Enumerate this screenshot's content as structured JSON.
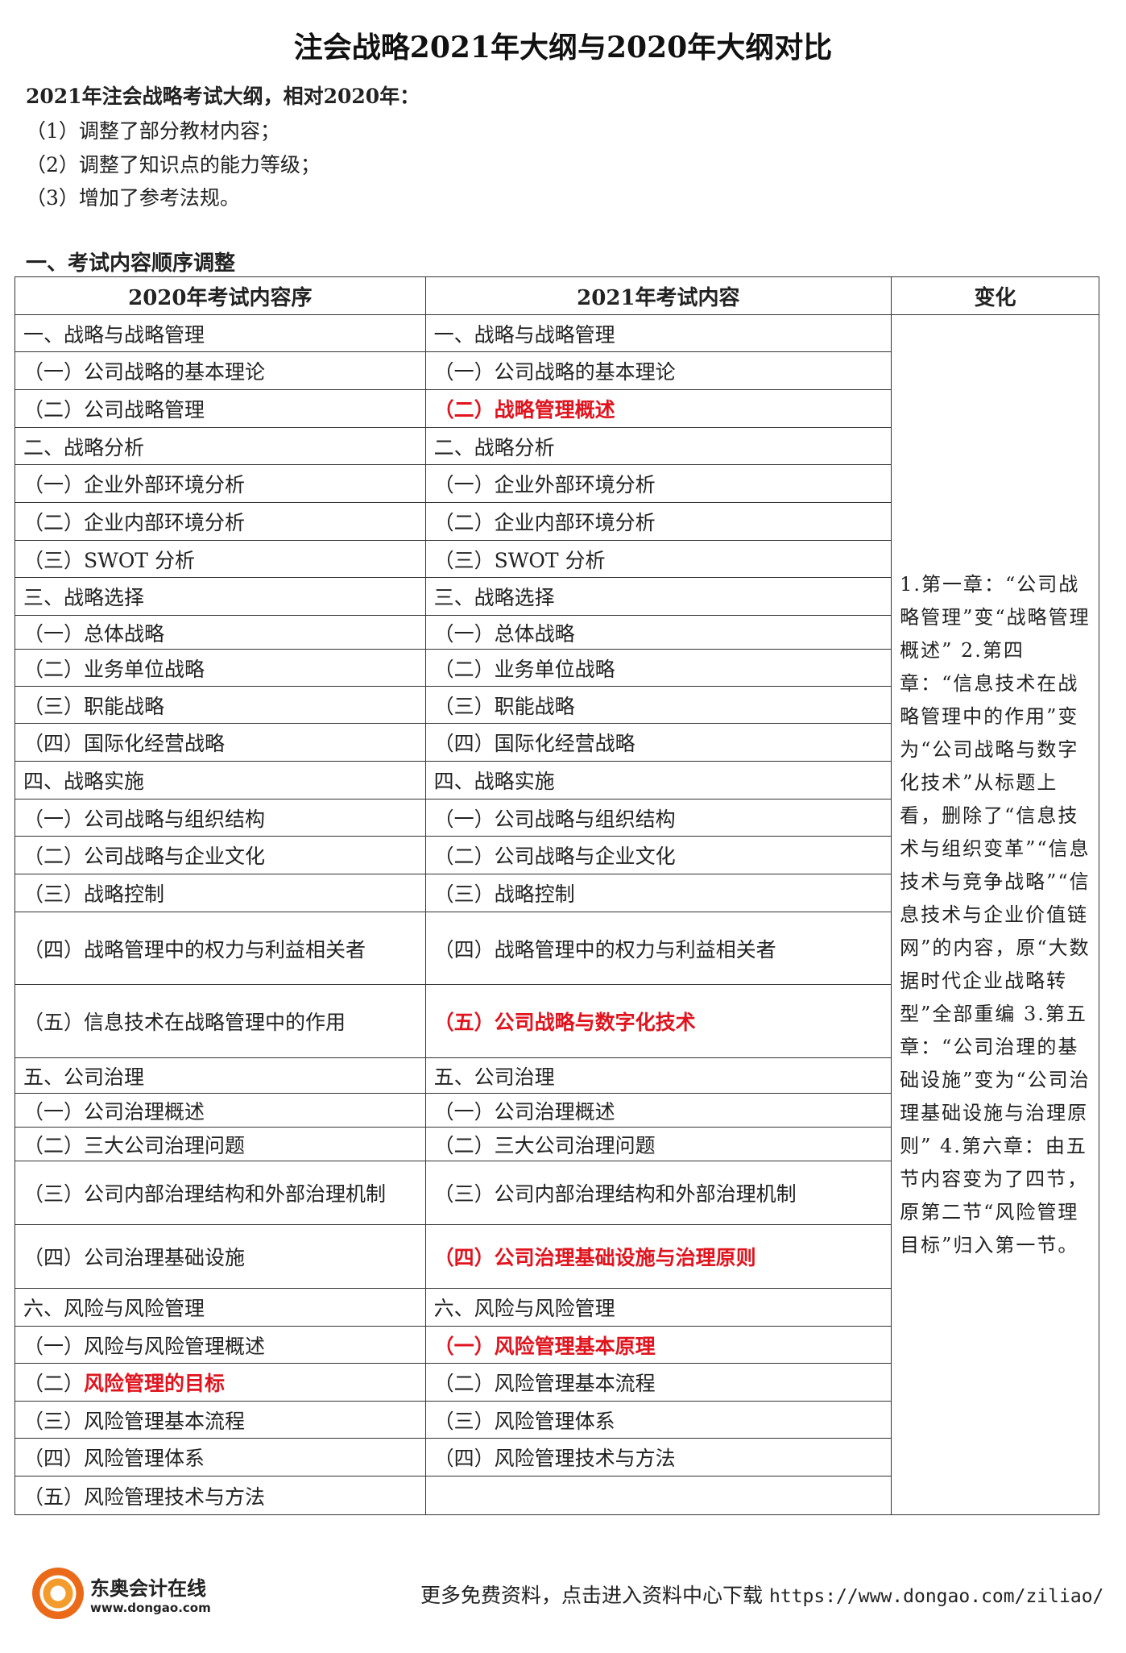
{
  "title": "注会战略2021年大纲与2020年大纲对比",
  "intro": {
    "head": "2021年注会战略考试大纲，相对2020年：",
    "items": [
      "（1）调整了部分教材内容；",
      "（2）调整了知识点的能力等级；",
      "（3）增加了参考法规。"
    ]
  },
  "section_title": "一、考试内容顺序调整",
  "table": {
    "headers": [
      "2020年考试内容序",
      "2021年考试内容",
      "变化"
    ],
    "rows": [
      {
        "l": "一、战略与战略管理",
        "r": "一、战略与战略管理"
      },
      {
        "l": "（一）公司战略的基本理论",
        "r": "（一）公司战略的基本理论"
      },
      {
        "l": "（二）公司战略管理",
        "r": "（二）战略管理概述",
        "r_red": true
      },
      {
        "l": "二、战略分析",
        "r": "二、战略分析"
      },
      {
        "l": "（一）企业外部环境分析",
        "r": "（一）企业外部环境分析"
      },
      {
        "l": "（二）企业内部环境分析",
        "r": "（二）企业内部环境分析"
      },
      {
        "l": "（三）SWOT 分析",
        "r": "（三）SWOT 分析"
      },
      {
        "l": "三、战略选择",
        "r": "三、战略选择"
      },
      {
        "l": "（一）总体战略",
        "r": "（一）总体战略"
      },
      {
        "l": "（二）业务单位战略",
        "r": "（二）业务单位战略"
      },
      {
        "l": "（三）职能战略",
        "r": "（三）职能战略"
      },
      {
        "l": "（四）国际化经营战略",
        "r": "（四）国际化经营战略"
      },
      {
        "l": "四、战略实施",
        "r": "四、战略实施"
      },
      {
        "l": "（一）公司战略与组织结构",
        "r": "（一）公司战略与组织结构"
      },
      {
        "l": "（二）公司战略与企业文化",
        "r": "（二）公司战略与企业文化"
      },
      {
        "l": "（三）战略控制",
        "r": "（三）战略控制"
      },
      {
        "l": "（四）战略管理中的权力与利益相关者",
        "r": "（四）战略管理中的权力与利益相关者"
      },
      {
        "l": "（五）信息技术在战略管理中的作用",
        "r": "（五）公司战略与数字化技术",
        "r_red": true
      },
      {
        "l": "五、公司治理",
        "r": "五、公司治理"
      },
      {
        "l": "（一）公司治理概述",
        "r": "（一）公司治理概述"
      },
      {
        "l": "（二）三大公司治理问题",
        "r": "（二）三大公司治理问题"
      },
      {
        "l": "（三）公司内部治理结构和外部治理机制",
        "r": "（三）公司内部治理结构和外部治理机制"
      },
      {
        "l": "（四）公司治理基础设施",
        "r": "（四）公司治理基础设施与治理原则",
        "r_red": true
      },
      {
        "l": "六、风险与风险管理",
        "r": "六、风险与风险管理"
      },
      {
        "l": "（一）风险与风险管理概述",
        "r": "（一）风险管理基本原理",
        "r_red": true
      },
      {
        "l_prefix": "（二）",
        "l": "风险管理的目标",
        "l_red": true,
        "r": "（二）风险管理基本流程"
      },
      {
        "l": "（三）风险管理基本流程",
        "r": "（三）风险管理体系"
      },
      {
        "l": "（四）风险管理体系",
        "r": "（四）风险管理技术与方法"
      },
      {
        "l": "（五）风险管理技术与方法",
        "r": ""
      }
    ],
    "change_note": "1.第一章：“公司战略管理”变“战略管理概述” 2.第四章：“信息技术在战略管理中的作用”变为“公司战略与数字化技术”从标题上看，删除了“信息技术与组织变革”“信息技术与竞争战略”“信息技术与企业价值链网”的内容，原“大数据时代企业战略转型”全部重编 3.第五章：“公司治理的基础设施”变为“公司治理基础设施与治理原则” 4.第六章：由五节内容变为了四节，原第二节“风险管理目标”归入第一节。"
  },
  "footer": {
    "text": "更多免费资料，点击进入资料中心下载",
    "url": "https://www.dongao.com/ziliao/",
    "logo_cn": "东奥会计在线",
    "logo_en": "www.dongao.com"
  },
  "colors": {
    "highlight": "#e0141e",
    "logo": "#ea6a1a"
  }
}
